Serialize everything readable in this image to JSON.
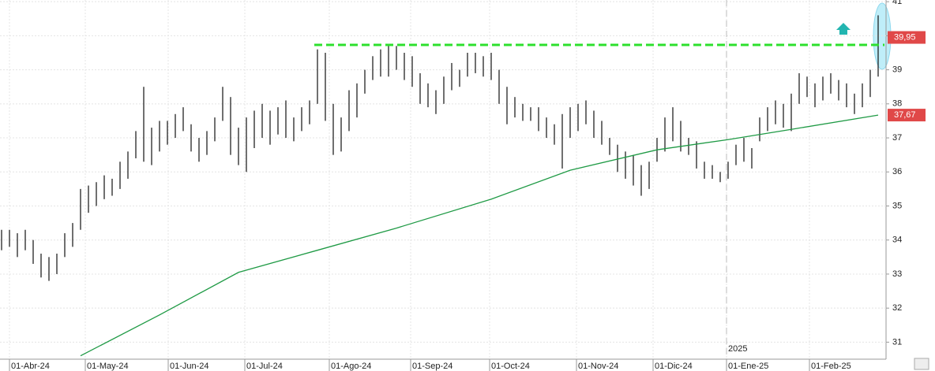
{
  "chart_data": {
    "type": "hlc",
    "high": [
      34.3,
      34.3,
      34.2,
      34.3,
      34.0,
      33.6,
      33.5,
      33.6,
      34.2,
      34.5,
      35.5,
      35.6,
      35.7,
      35.9,
      35.8,
      36.3,
      36.6,
      37.2,
      38.5,
      37.3,
      37.5,
      37.5,
      37.7,
      37.9,
      37.4,
      37.0,
      37.2,
      37.6,
      38.5,
      38.2,
      37.3,
      37.6,
      37.8,
      38.0,
      37.8,
      37.9,
      38.1,
      37.6,
      37.9,
      38.1,
      39.6,
      39.5,
      38.0,
      37.6,
      38.4,
      38.6,
      39.0,
      39.4,
      39.6,
      39.7,
      39.7,
      39.5,
      39.4,
      38.9,
      38.6,
      38.4,
      38.8,
      39.2,
      39.0,
      39.5,
      39.5,
      39.4,
      39.5,
      39.0,
      38.5,
      38.2,
      38.0,
      37.9,
      37.9,
      37.6,
      37.4,
      37.7,
      37.9,
      38.0,
      38.1,
      37.8,
      37.5,
      37.0,
      36.8,
      36.6,
      36.5,
      36.2,
      36.3,
      37.0,
      37.6,
      37.9,
      37.5,
      37.0,
      36.9,
      36.3,
      36.2,
      36.0,
      36.3,
      36.8,
      37.0,
      36.7,
      37.6,
      37.9,
      38.1,
      38.0,
      38.3,
      38.9,
      38.8,
      38.6,
      38.8,
      38.9,
      38.7,
      38.6,
      38.3,
      38.6,
      39.0,
      40.6
    ],
    "low": [
      33.7,
      33.8,
      33.5,
      33.7,
      33.3,
      32.9,
      32.8,
      33.0,
      33.5,
      33.8,
      34.3,
      34.8,
      35.0,
      35.2,
      35.3,
      35.5,
      35.8,
      36.4,
      36.3,
      36.2,
      36.6,
      36.8,
      37.0,
      37.2,
      36.6,
      36.3,
      36.5,
      36.9,
      37.5,
      36.5,
      36.2,
      36.0,
      36.7,
      37.0,
      36.8,
      37.1,
      37.0,
      36.9,
      37.2,
      37.4,
      38.0,
      37.5,
      36.5,
      36.6,
      37.2,
      37.6,
      38.3,
      38.7,
      38.8,
      38.8,
      39.0,
      38.7,
      38.5,
      38.0,
      37.9,
      37.7,
      38.0,
      38.4,
      38.5,
      38.8,
      38.9,
      38.8,
      38.7,
      38.0,
      37.4,
      37.6,
      37.5,
      37.5,
      37.2,
      37.0,
      36.8,
      36.1,
      37.0,
      37.2,
      37.4,
      37.0,
      36.8,
      36.5,
      36.0,
      35.8,
      35.6,
      35.3,
      35.5,
      36.3,
      36.6,
      36.9,
      36.6,
      36.5,
      36.1,
      35.8,
      35.8,
      35.7,
      35.8,
      36.2,
      36.3,
      36.1,
      36.9,
      37.2,
      37.4,
      37.3,
      37.2,
      38.0,
      38.2,
      37.9,
      38.1,
      38.3,
      38.1,
      37.9,
      37.7,
      37.9,
      38.2,
      38.8
    ],
    "ma": {
      "x": [
        10,
        20,
        30,
        40,
        50,
        62,
        72,
        83,
        92,
        100,
        111
      ],
      "values": [
        30.6,
        31.8,
        33.05,
        33.7,
        34.35,
        35.2,
        36.05,
        36.65,
        36.95,
        37.25,
        37.67
      ]
    },
    "resistance": {
      "value": 39.73,
      "from": 40
    },
    "last_price": {
      "value": 39.95,
      "label": "39,95"
    },
    "ma_last": {
      "value": 37.67,
      "label": "37,67"
    },
    "year_marker": {
      "value": 91.8,
      "label": "2025"
    },
    "xlim": [
      -0.2,
      112
    ],
    "ylim": [
      30.5,
      41.05
    ],
    "yticks": [
      31,
      32,
      33,
      34,
      35,
      36,
      37,
      38,
      39,
      40,
      41
    ],
    "xticks": [
      {
        "value": 1,
        "label": "01-Abr-24"
      },
      {
        "value": 10.6,
        "label": "01-May-24"
      },
      {
        "value": 21.1,
        "label": "01-Jun-24"
      },
      {
        "value": 30.8,
        "label": "01-Jul-24"
      },
      {
        "value": 41.5,
        "label": "01-Ago-24"
      },
      {
        "value": 51.8,
        "label": "01-Sep-24"
      },
      {
        "value": 61.8,
        "label": "01-Oct-24"
      },
      {
        "value": 72.8,
        "label": "01-Nov-24"
      },
      {
        "value": 82.5,
        "label": "01-Dic-24"
      },
      {
        "value": 91.8,
        "label": "01-Ene-25"
      },
      {
        "value": 102.3,
        "label": "01-Feb-25"
      }
    ],
    "grid": true
  }
}
